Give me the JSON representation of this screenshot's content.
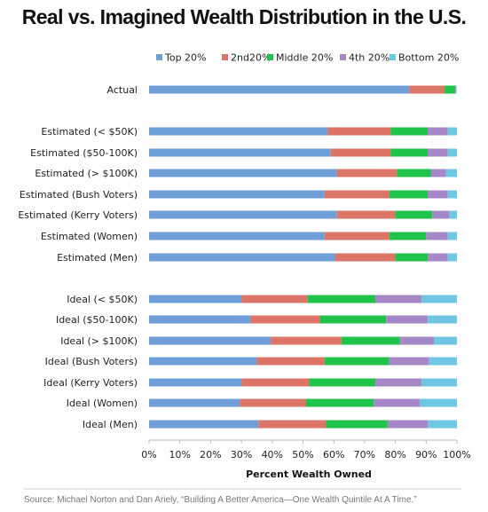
{
  "chart_data": {
    "type": "bar",
    "orientation": "horizontal",
    "stacked": true,
    "title": "Real vs. Imagined Wealth Distribution in the U.S.",
    "xlabel": "Percent Wealth Owned",
    "ylabel": "",
    "xlim": [
      0,
      100
    ],
    "xticks": [
      "0%",
      "10%",
      "20%",
      "30%",
      "40%",
      "50%",
      "60%",
      "70%",
      "80%",
      "90%",
      "100%"
    ],
    "legend_position": "top-right",
    "grid": false,
    "categories": [
      "Actual",
      "Estimated (< $50K)",
      "Estimated ($50-100K)",
      "Estimated (> $100K)",
      "Estimated (Bush Voters)",
      "Estimated (Kerry Voters)",
      "Estimated (Women)",
      "Estimated (Men)",
      "Ideal (< $50K)",
      "Ideal ($50-100K)",
      "Ideal (> $100K)",
      "Ideal (Bush Voters)",
      "Ideal (Kerry Voters)",
      "Ideal (Women)",
      "Ideal (Men)"
    ],
    "series": [
      {
        "name": "Top 20%",
        "color": "#6f9fd8",
        "values": [
          84.5,
          58,
          59,
          61,
          57,
          61,
          57,
          60.5,
          30,
          33,
          39.5,
          35,
          30,
          29.5,
          35.5
        ]
      },
      {
        "name": "2nd20%",
        "color": "#dd7468",
        "values": [
          11.5,
          20.5,
          19.5,
          19.5,
          21,
          19,
          21,
          19.5,
          21.5,
          22.5,
          23,
          22,
          22,
          21.5,
          22
        ]
      },
      {
        "name": "Middle 20%",
        "color": "#1fc34a",
        "values": [
          3.5,
          12,
          12,
          11,
          12.5,
          12,
          12,
          10.5,
          22,
          21.5,
          19,
          21,
          21.5,
          22,
          20
        ]
      },
      {
        "name": "4th 20%",
        "color": "#a688c8",
        "values": [
          0.3,
          6.5,
          6.5,
          5,
          6.5,
          5.5,
          7,
          6.5,
          15,
          13.5,
          11,
          13,
          15,
          15,
          13
        ]
      },
      {
        "name": "Bottom 20%",
        "color": "#6ec8e4",
        "values": [
          0.1,
          3,
          3,
          3.5,
          3,
          2.5,
          3,
          3,
          11.5,
          9.5,
          7.5,
          9,
          11.5,
          12,
          9.5
        ]
      }
    ]
  },
  "source": "Source: Michael Norton and Dan Ariely, “Building A Better America—One Wealth Quintile At A Time.”"
}
